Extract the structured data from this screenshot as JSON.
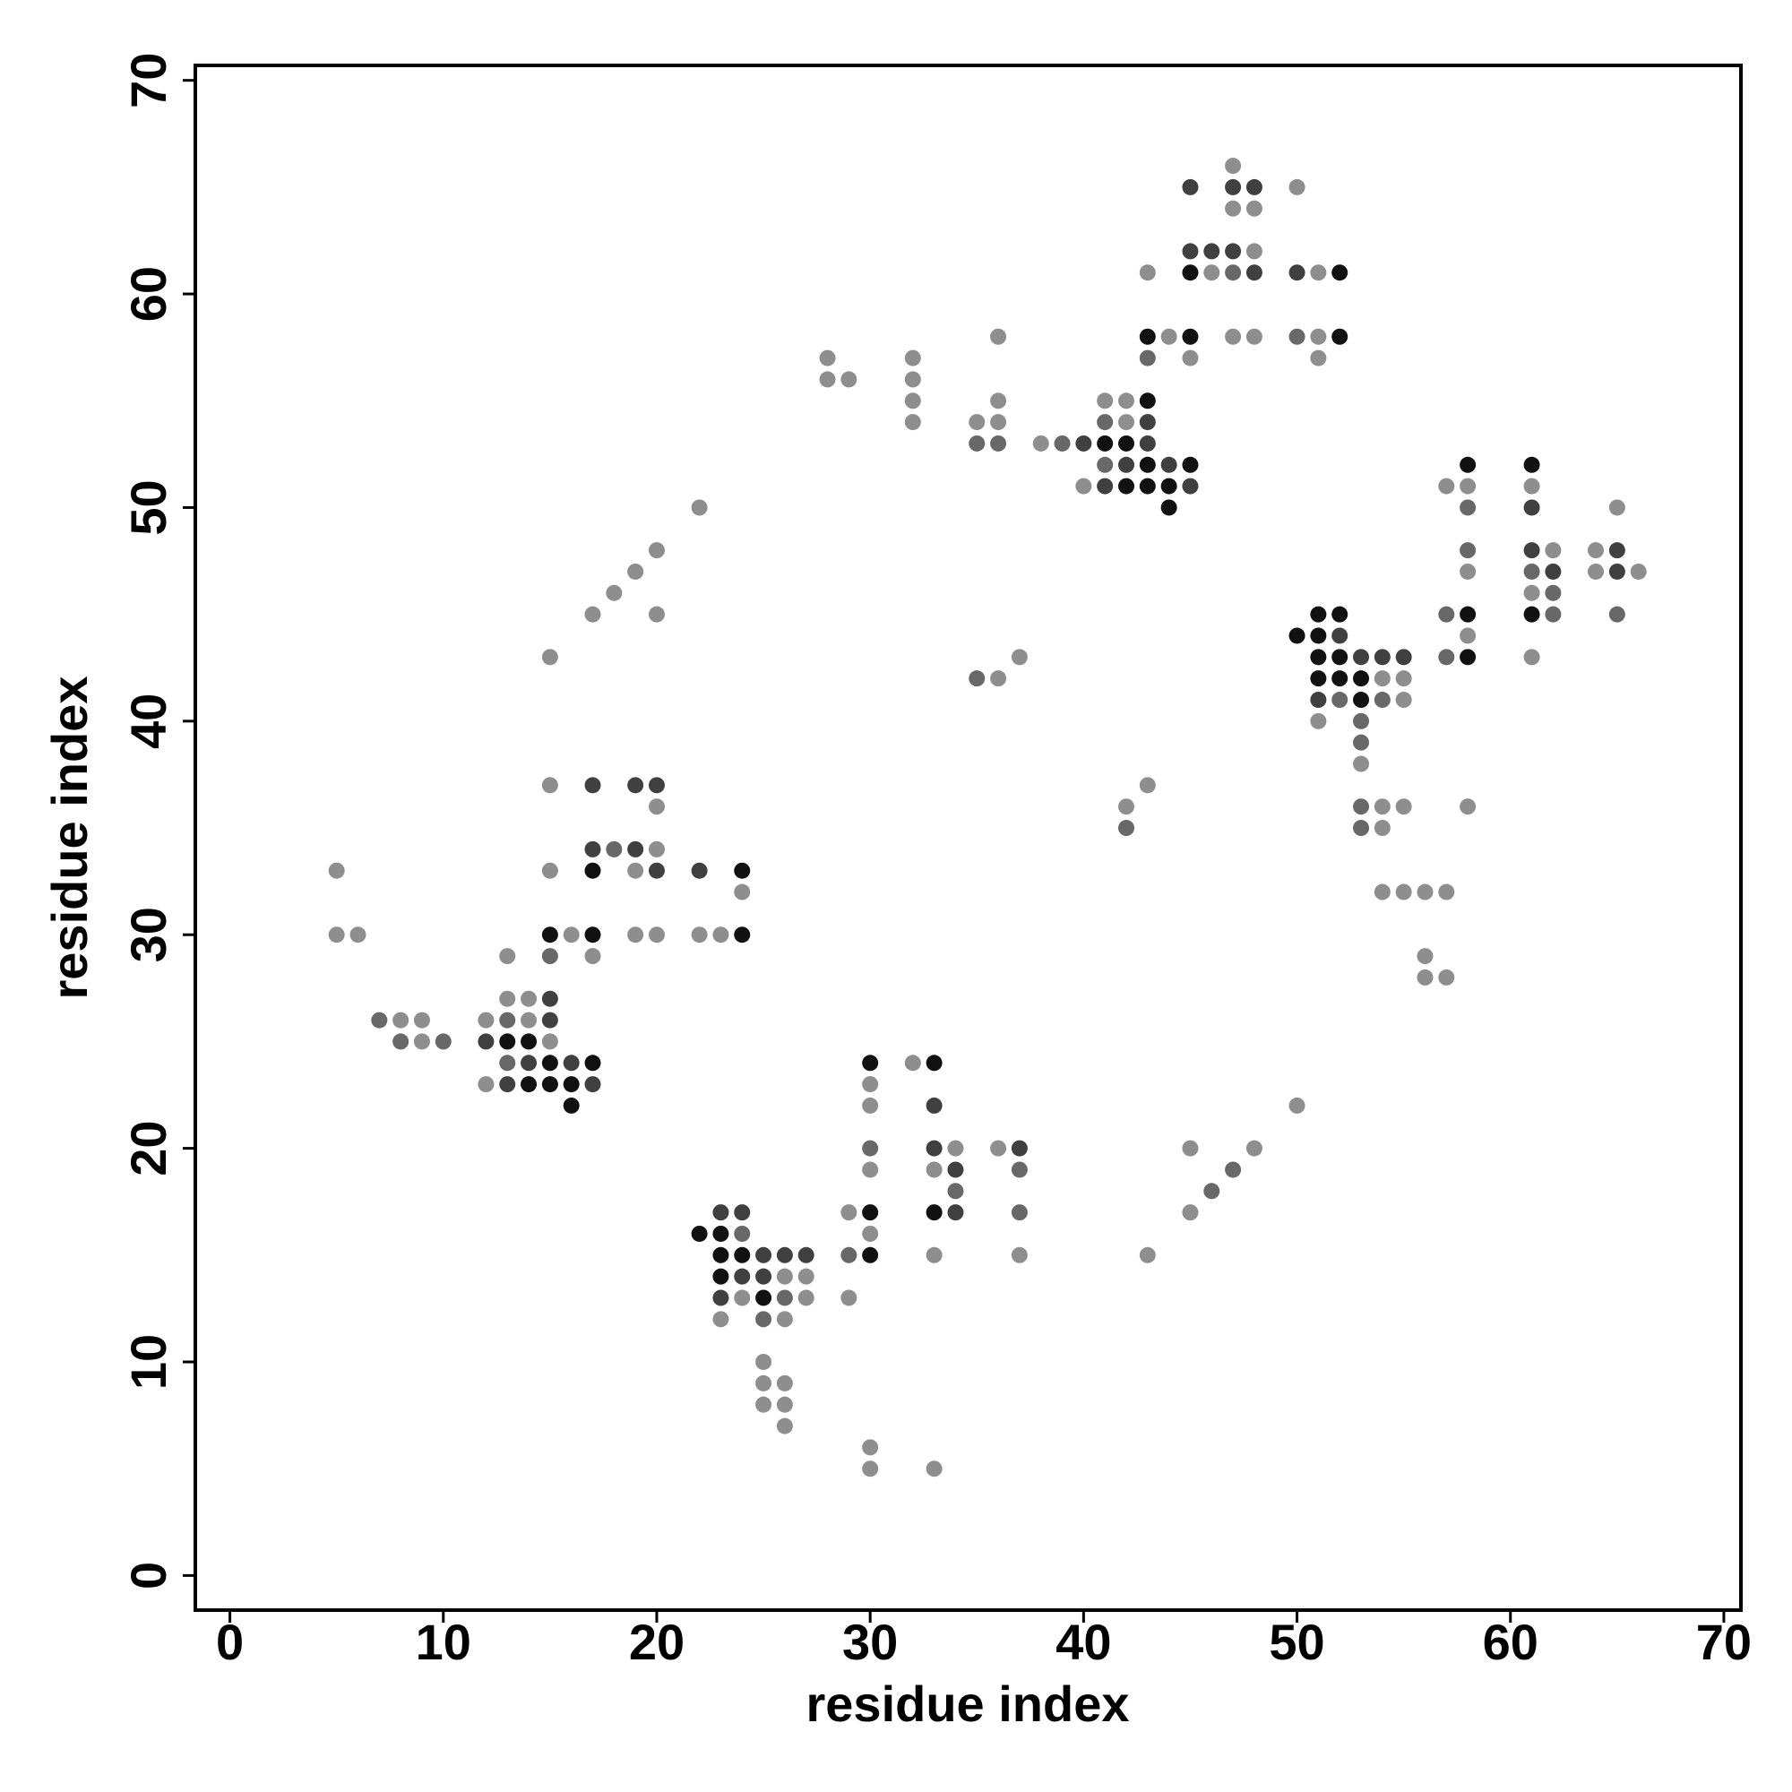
{
  "chart_data": {
    "type": "scatter",
    "x_label": "residue index",
    "y_label": "residue index",
    "xlim": [
      -1.62,
      70.8
    ],
    "ylim": [
      -1.62,
      70.7
    ],
    "xticks": [
      0,
      10,
      20,
      30,
      40,
      50,
      60,
      70
    ],
    "yticks": [
      0,
      10,
      20,
      30,
      40,
      50,
      60,
      70
    ],
    "series": [
      {
        "color": "#111111",
        "x": [
          13,
          14,
          14,
          15,
          15,
          15,
          16,
          16,
          17,
          17,
          17,
          24,
          24,
          22,
          23,
          23,
          23,
          24,
          25,
          30,
          30,
          30,
          33,
          33,
          41,
          42,
          42,
          43,
          43,
          43,
          43,
          44,
          44,
          45,
          45,
          45,
          52,
          52,
          50,
          51,
          51,
          51,
          51,
          52,
          52,
          52,
          53,
          53,
          58,
          58,
          58,
          61,
          61
        ],
        "values": [
          25,
          25,
          23,
          30,
          24,
          23,
          23,
          22,
          33,
          30,
          24,
          33,
          30,
          16,
          16,
          15,
          14,
          15,
          13,
          24,
          17,
          15,
          24,
          17,
          53,
          53,
          51,
          58,
          55,
          52,
          51,
          51,
          50,
          61,
          58,
          52,
          61,
          58,
          44,
          45,
          44,
          43,
          42,
          45,
          43,
          42,
          42,
          41,
          52,
          45,
          43,
          52,
          45
        ]
      },
      {
        "color": "#404040",
        "x": [
          12,
          13,
          14,
          15,
          15,
          16,
          17,
          17,
          17,
          19,
          19,
          20,
          20,
          22,
          23,
          23,
          24,
          24,
          25,
          25,
          26,
          27,
          33,
          33,
          34,
          34,
          37,
          40,
          41,
          42,
          43,
          43,
          44,
          45,
          45,
          45,
          46,
          47,
          47,
          48,
          48,
          50,
          51,
          52,
          53,
          54,
          55,
          61,
          61,
          62,
          65,
          65
        ],
        "values": [
          25,
          23,
          24,
          27,
          26,
          24,
          37,
          34,
          23,
          37,
          34,
          37,
          33,
          33,
          17,
          13,
          17,
          14,
          15,
          14,
          15,
          15,
          22,
          20,
          19,
          17,
          20,
          53,
          51,
          52,
          54,
          53,
          52,
          65,
          62,
          51,
          62,
          65,
          62,
          65,
          61,
          61,
          41,
          44,
          43,
          43,
          43,
          50,
          48,
          47,
          48,
          47
        ]
      },
      {
        "color": "#686868",
        "x": [
          7,
          8,
          10,
          13,
          13,
          15,
          18,
          24,
          25,
          26,
          29,
          30,
          34,
          37,
          37,
          46,
          47,
          35,
          36,
          35,
          39,
          41,
          41,
          42,
          43,
          47,
          50,
          52,
          53,
          53,
          53,
          53,
          54,
          57,
          57,
          58,
          58,
          61,
          62,
          62,
          65
        ],
        "values": [
          26,
          25,
          25,
          26,
          24,
          29,
          34,
          16,
          12,
          13,
          15,
          20,
          18,
          19,
          17,
          18,
          19,
          53,
          53,
          42,
          53,
          54,
          52,
          35,
          57,
          61,
          58,
          41,
          40,
          39,
          36,
          35,
          41,
          45,
          43,
          50,
          48,
          47,
          46,
          45,
          45
        ]
      },
      {
        "color": "#8e8e8e",
        "x": [
          5,
          5,
          6,
          8,
          9,
          9,
          12,
          12,
          13,
          13,
          14,
          14,
          15,
          15,
          15,
          15,
          16,
          17,
          17,
          18,
          19,
          19,
          19,
          20,
          20,
          20,
          20,
          20,
          22,
          22,
          23,
          24,
          23,
          24,
          25,
          25,
          25,
          26,
          26,
          26,
          26,
          26,
          27,
          27,
          29,
          29,
          30,
          30,
          30,
          30,
          30,
          30,
          32,
          33,
          33,
          33,
          34,
          36,
          37,
          43,
          45,
          45,
          48,
          50,
          28,
          28,
          29,
          32,
          32,
          32,
          32,
          35,
          36,
          36,
          36,
          36,
          37,
          38,
          40,
          41,
          42,
          42,
          42,
          43,
          43,
          44,
          45,
          46,
          47,
          47,
          47,
          48,
          48,
          48,
          50,
          51,
          51,
          51,
          51,
          53,
          54,
          54,
          54,
          54,
          55,
          55,
          55,
          55,
          56,
          56,
          56,
          57,
          57,
          57,
          58,
          58,
          58,
          58,
          61,
          61,
          61,
          62,
          64,
          64,
          65,
          66
        ],
        "values": [
          33,
          30,
          30,
          26,
          26,
          25,
          26,
          23,
          29,
          27,
          27,
          26,
          37,
          33,
          25,
          43,
          30,
          45,
          29,
          46,
          47,
          33,
          30,
          48,
          45,
          36,
          34,
          30,
          50,
          30,
          30,
          32,
          12,
          13,
          10,
          9,
          8,
          14,
          12,
          9,
          8,
          7,
          14,
          13,
          17,
          13,
          23,
          22,
          19,
          16,
          6,
          5,
          24,
          19,
          15,
          5,
          20,
          20,
          15,
          15,
          20,
          17,
          20,
          22,
          57,
          56,
          56,
          57,
          56,
          55,
          54,
          54,
          58,
          55,
          54,
          42,
          43,
          53,
          51,
          55,
          55,
          54,
          36,
          61,
          37,
          58,
          57,
          61,
          66,
          64,
          58,
          64,
          62,
          58,
          65,
          61,
          58,
          57,
          40,
          38,
          42,
          36,
          35,
          32,
          42,
          41,
          36,
          32,
          32,
          29,
          28,
          51,
          32,
          28,
          51,
          47,
          44,
          36,
          51,
          46,
          43,
          48,
          48,
          47,
          50,
          47
        ]
      }
    ]
  }
}
